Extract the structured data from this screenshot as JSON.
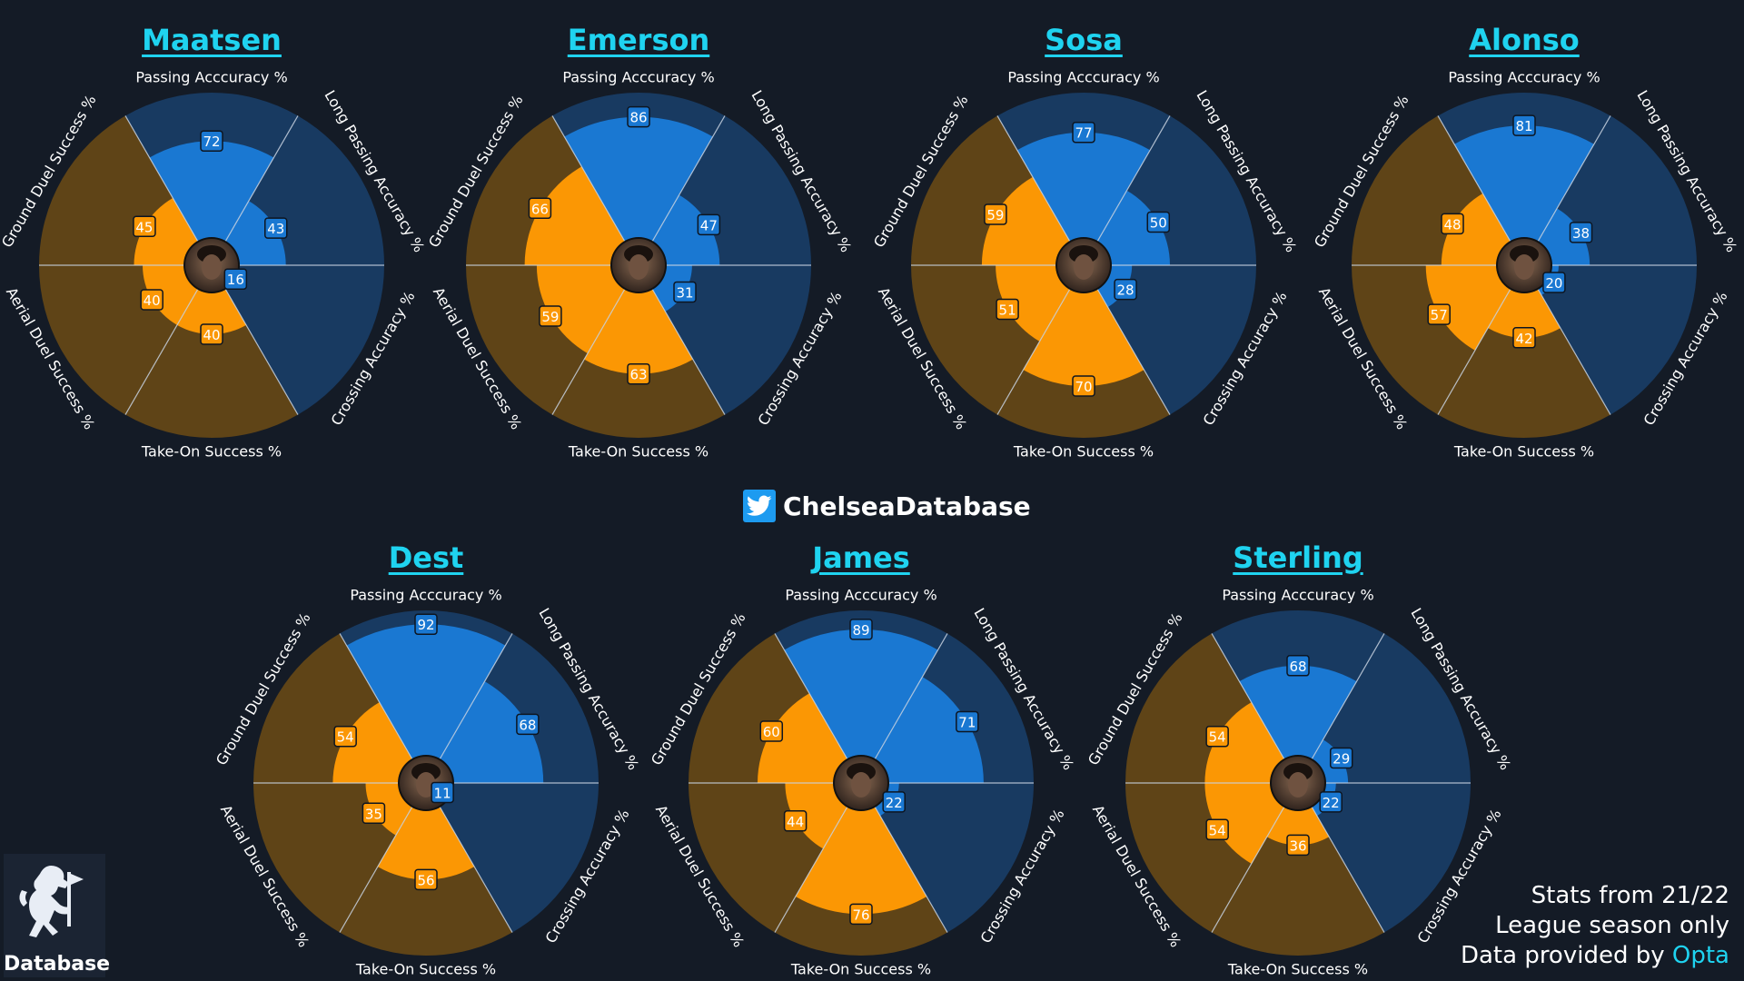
{
  "colors": {
    "background": "#141b26",
    "passing_slice_bg": "#183a61",
    "passing_value": "#1a78d2",
    "duel_slice_bg": "#5f4417",
    "duel_value": "#fb9704",
    "title": "#1fd3f0"
  },
  "brand": {
    "name": "ChelseaDatabase",
    "icon": "twitter-icon"
  },
  "logo": {
    "label": "Database",
    "icon": "chelsea-lion-icon"
  },
  "footer": {
    "line1": "Stats from 21/22",
    "line2": "League season only",
    "line3_prefix": "Data provided by ",
    "line3_source": "Opta"
  },
  "chart_data": [
    {
      "type": "polar-area",
      "title": "Maatsen",
      "categories": [
        "Passing Acccuracy %",
        "Long Passing Accuracy %",
        "Crossing Accuracy %",
        "Take-On Success %",
        "Aerial Duel Success %",
        "Ground Duel Success %"
      ],
      "values": [
        72,
        43,
        16,
        40,
        40,
        45
      ],
      "ylim": [
        0,
        100
      ]
    },
    {
      "type": "polar-area",
      "title": "Emerson",
      "categories": [
        "Passing Acccuracy %",
        "Long Passing Accuracy %",
        "Crossing Accuracy %",
        "Take-On Success %",
        "Aerial Duel Success %",
        "Ground Duel Success %"
      ],
      "values": [
        86,
        47,
        31,
        63,
        59,
        66
      ],
      "ylim": [
        0,
        100
      ]
    },
    {
      "type": "polar-area",
      "title": "Sosa",
      "categories": [
        "Passing Acccuracy %",
        "Long Passing Accuracy %",
        "Crossing Accuracy %",
        "Take-On Success %",
        "Aerial Duel Success %",
        "Ground Duel Success %"
      ],
      "values": [
        77,
        50,
        28,
        70,
        51,
        59
      ],
      "ylim": [
        0,
        100
      ]
    },
    {
      "type": "polar-area",
      "title": "Alonso",
      "categories": [
        "Passing Acccuracy %",
        "Long Passing Accuracy %",
        "Crossing Accuracy %",
        "Take-On Success %",
        "Aerial Duel Success %",
        "Ground Duel Success %"
      ],
      "values": [
        81,
        38,
        20,
        42,
        57,
        48
      ],
      "ylim": [
        0,
        100
      ]
    },
    {
      "type": "polar-area",
      "title": "Dest",
      "categories": [
        "Passing Acccuracy %",
        "Long Passing Accuracy %",
        "Crossing Accuracy %",
        "Take-On Success %",
        "Aerial Duel Success %",
        "Ground Duel Success %"
      ],
      "values": [
        92,
        68,
        11,
        56,
        35,
        54
      ],
      "ylim": [
        0,
        100
      ]
    },
    {
      "type": "polar-area",
      "title": "James",
      "categories": [
        "Passing Acccuracy %",
        "Long Passing Accuracy %",
        "Crossing Accuracy %",
        "Take-On Success %",
        "Aerial Duel Success %",
        "Ground Duel Success %"
      ],
      "values": [
        89,
        71,
        22,
        76,
        44,
        60
      ],
      "ylim": [
        0,
        100
      ]
    },
    {
      "type": "polar-area",
      "title": "Sterling",
      "categories": [
        "Passing Acccuracy %",
        "Long Passing Accuracy %",
        "Crossing Accuracy %",
        "Take-On Success %",
        "Aerial Duel Success %",
        "Ground Duel Success %"
      ],
      "values": [
        68,
        29,
        22,
        36,
        54,
        54
      ],
      "ylim": [
        0,
        100
      ]
    }
  ]
}
